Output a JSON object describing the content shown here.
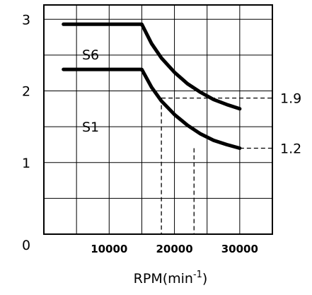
{
  "chart_data": {
    "type": "line",
    "xlabel": "RPM(min",
    "xlabel_sup": "-1",
    "xlabel_close": ")",
    "xlim": [
      0,
      35000
    ],
    "ylim": [
      0,
      3.2
    ],
    "grid": true,
    "x_ticks": [
      {
        "value": 10000,
        "label": "10000"
      },
      {
        "value": 20000,
        "label": "20000"
      },
      {
        "value": 30000,
        "label": "30000"
      }
    ],
    "y_ticks": [
      {
        "value": 0,
        "label": "0"
      },
      {
        "value": 1,
        "label": "1"
      },
      {
        "value": 2,
        "label": "2"
      },
      {
        "value": 3,
        "label": "3"
      }
    ],
    "series": [
      {
        "name": "S6",
        "points": [
          [
            3000,
            2.93
          ],
          [
            15000,
            2.93
          ],
          [
            16500,
            2.66
          ],
          [
            18000,
            2.46
          ],
          [
            20000,
            2.26
          ],
          [
            22000,
            2.1
          ],
          [
            24000,
            1.98
          ],
          [
            26000,
            1.88
          ],
          [
            28000,
            1.81
          ],
          [
            30000,
            1.75
          ]
        ]
      },
      {
        "name": "S1",
        "points": [
          [
            3000,
            2.3
          ],
          [
            15000,
            2.3
          ],
          [
            16500,
            2.05
          ],
          [
            18000,
            1.86
          ],
          [
            20000,
            1.67
          ],
          [
            22000,
            1.52
          ],
          [
            24000,
            1.4
          ],
          [
            26000,
            1.31
          ],
          [
            28000,
            1.25
          ],
          [
            30000,
            1.2
          ]
        ]
      }
    ],
    "annotations": [
      {
        "label": "1.9",
        "y": 1.9,
        "x_start": 18000,
        "x_drop": 18000
      },
      {
        "label": "1.2",
        "y": 1.2,
        "x_start": 30000,
        "x_drop": 23000
      }
    ]
  }
}
